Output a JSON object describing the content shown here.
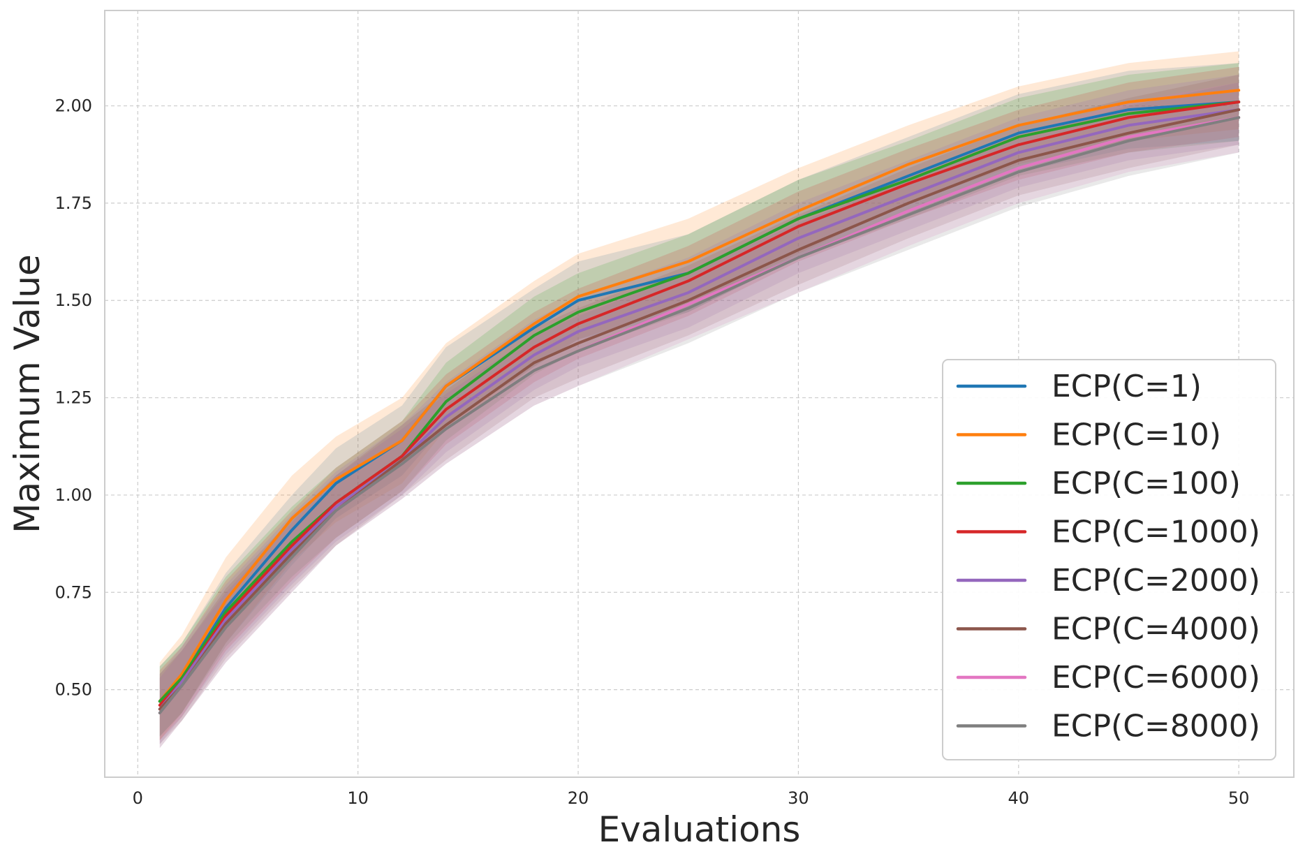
{
  "chart_data": {
    "type": "line",
    "title": "",
    "xlabel": "Evaluations",
    "ylabel": "Maximum Value",
    "xlim": [
      -1.5,
      52.5
    ],
    "ylim": [
      0.275,
      2.245
    ],
    "xticks": [
      0,
      10,
      20,
      30,
      40,
      50
    ],
    "xtick_labels": [
      "0",
      "10",
      "20",
      "30",
      "40",
      "50"
    ],
    "yticks": [
      0.5,
      0.75,
      1.0,
      1.25,
      1.5,
      1.75,
      2.0
    ],
    "ytick_labels": [
      "0.50",
      "0.75",
      "1.00",
      "1.25",
      "1.50",
      "1.75",
      "2.00"
    ],
    "grid": true,
    "legend_position": "lower-right",
    "band": "shaded spread band around each series",
    "x": [
      1,
      2,
      4,
      7,
      9,
      12,
      14,
      18,
      20,
      25,
      30,
      35,
      40,
      45,
      50
    ],
    "series": [
      {
        "name": "ECP(C=1)",
        "color": "#1f77b4",
        "values": [
          0.47,
          0.53,
          0.71,
          0.91,
          1.03,
          1.14,
          1.28,
          1.43,
          1.5,
          1.57,
          1.71,
          1.82,
          1.93,
          1.99,
          2.01
        ],
        "band": [
          0.09,
          0.09,
          0.09,
          0.09,
          0.09,
          0.09,
          0.1,
          0.1,
          0.1,
          0.1,
          0.1,
          0.1,
          0.1,
          0.1,
          0.1
        ]
      },
      {
        "name": "ECP(C=10)",
        "color": "#ff7f0e",
        "values": [
          0.47,
          0.54,
          0.73,
          0.94,
          1.04,
          1.14,
          1.28,
          1.44,
          1.51,
          1.6,
          1.73,
          1.85,
          1.95,
          2.01,
          2.04
        ],
        "band": [
          0.1,
          0.1,
          0.11,
          0.11,
          0.11,
          0.11,
          0.11,
          0.11,
          0.11,
          0.11,
          0.11,
          0.1,
          0.1,
          0.1,
          0.1
        ]
      },
      {
        "name": "ECP(C=100)",
        "color": "#2ca02c",
        "values": [
          0.47,
          0.53,
          0.7,
          0.88,
          0.98,
          1.1,
          1.24,
          1.41,
          1.47,
          1.57,
          1.71,
          1.81,
          1.92,
          1.98,
          2.01
        ],
        "band": [
          0.09,
          0.09,
          0.09,
          0.09,
          0.09,
          0.09,
          0.1,
          0.1,
          0.1,
          0.1,
          0.1,
          0.1,
          0.1,
          0.1,
          0.1
        ]
      },
      {
        "name": "ECP(C=1000)",
        "color": "#d62728",
        "values": [
          0.46,
          0.52,
          0.69,
          0.87,
          0.98,
          1.1,
          1.22,
          1.38,
          1.44,
          1.55,
          1.69,
          1.8,
          1.9,
          1.97,
          2.01
        ],
        "band": [
          0.09,
          0.09,
          0.09,
          0.09,
          0.09,
          0.09,
          0.09,
          0.09,
          0.09,
          0.09,
          0.09,
          0.09,
          0.09,
          0.09,
          0.09
        ]
      },
      {
        "name": "ECP(C=2000)",
        "color": "#9467bd",
        "values": [
          0.45,
          0.52,
          0.68,
          0.86,
          0.97,
          1.09,
          1.2,
          1.36,
          1.42,
          1.52,
          1.66,
          1.77,
          1.88,
          1.95,
          1.99
        ],
        "band": [
          0.09,
          0.09,
          0.09,
          0.09,
          0.09,
          0.09,
          0.09,
          0.09,
          0.09,
          0.09,
          0.09,
          0.09,
          0.09,
          0.09,
          0.09
        ]
      },
      {
        "name": "ECP(C=4000)",
        "color": "#8c564b",
        "values": [
          0.45,
          0.51,
          0.67,
          0.85,
          0.96,
          1.09,
          1.18,
          1.34,
          1.39,
          1.5,
          1.63,
          1.75,
          1.86,
          1.93,
          1.99
        ],
        "band": [
          0.09,
          0.09,
          0.09,
          0.09,
          0.09,
          0.09,
          0.09,
          0.09,
          0.09,
          0.09,
          0.09,
          0.09,
          0.09,
          0.09,
          0.09
        ]
      },
      {
        "name": "ECP(C=6000)",
        "color": "#e377c2",
        "values": [
          0.44,
          0.51,
          0.66,
          0.84,
          0.96,
          1.08,
          1.17,
          1.32,
          1.37,
          1.49,
          1.61,
          1.73,
          1.84,
          1.92,
          1.97
        ],
        "band": [
          0.09,
          0.09,
          0.09,
          0.09,
          0.09,
          0.09,
          0.09,
          0.09,
          0.09,
          0.09,
          0.09,
          0.09,
          0.09,
          0.09,
          0.09
        ]
      },
      {
        "name": "ECP(C=8000)",
        "color": "#7f7f7f",
        "values": [
          0.44,
          0.51,
          0.66,
          0.84,
          0.96,
          1.08,
          1.17,
          1.32,
          1.37,
          1.48,
          1.61,
          1.72,
          1.83,
          1.91,
          1.97
        ],
        "band": [
          0.09,
          0.09,
          0.09,
          0.09,
          0.09,
          0.09,
          0.09,
          0.09,
          0.09,
          0.09,
          0.09,
          0.09,
          0.09,
          0.09,
          0.09
        ]
      }
    ]
  }
}
